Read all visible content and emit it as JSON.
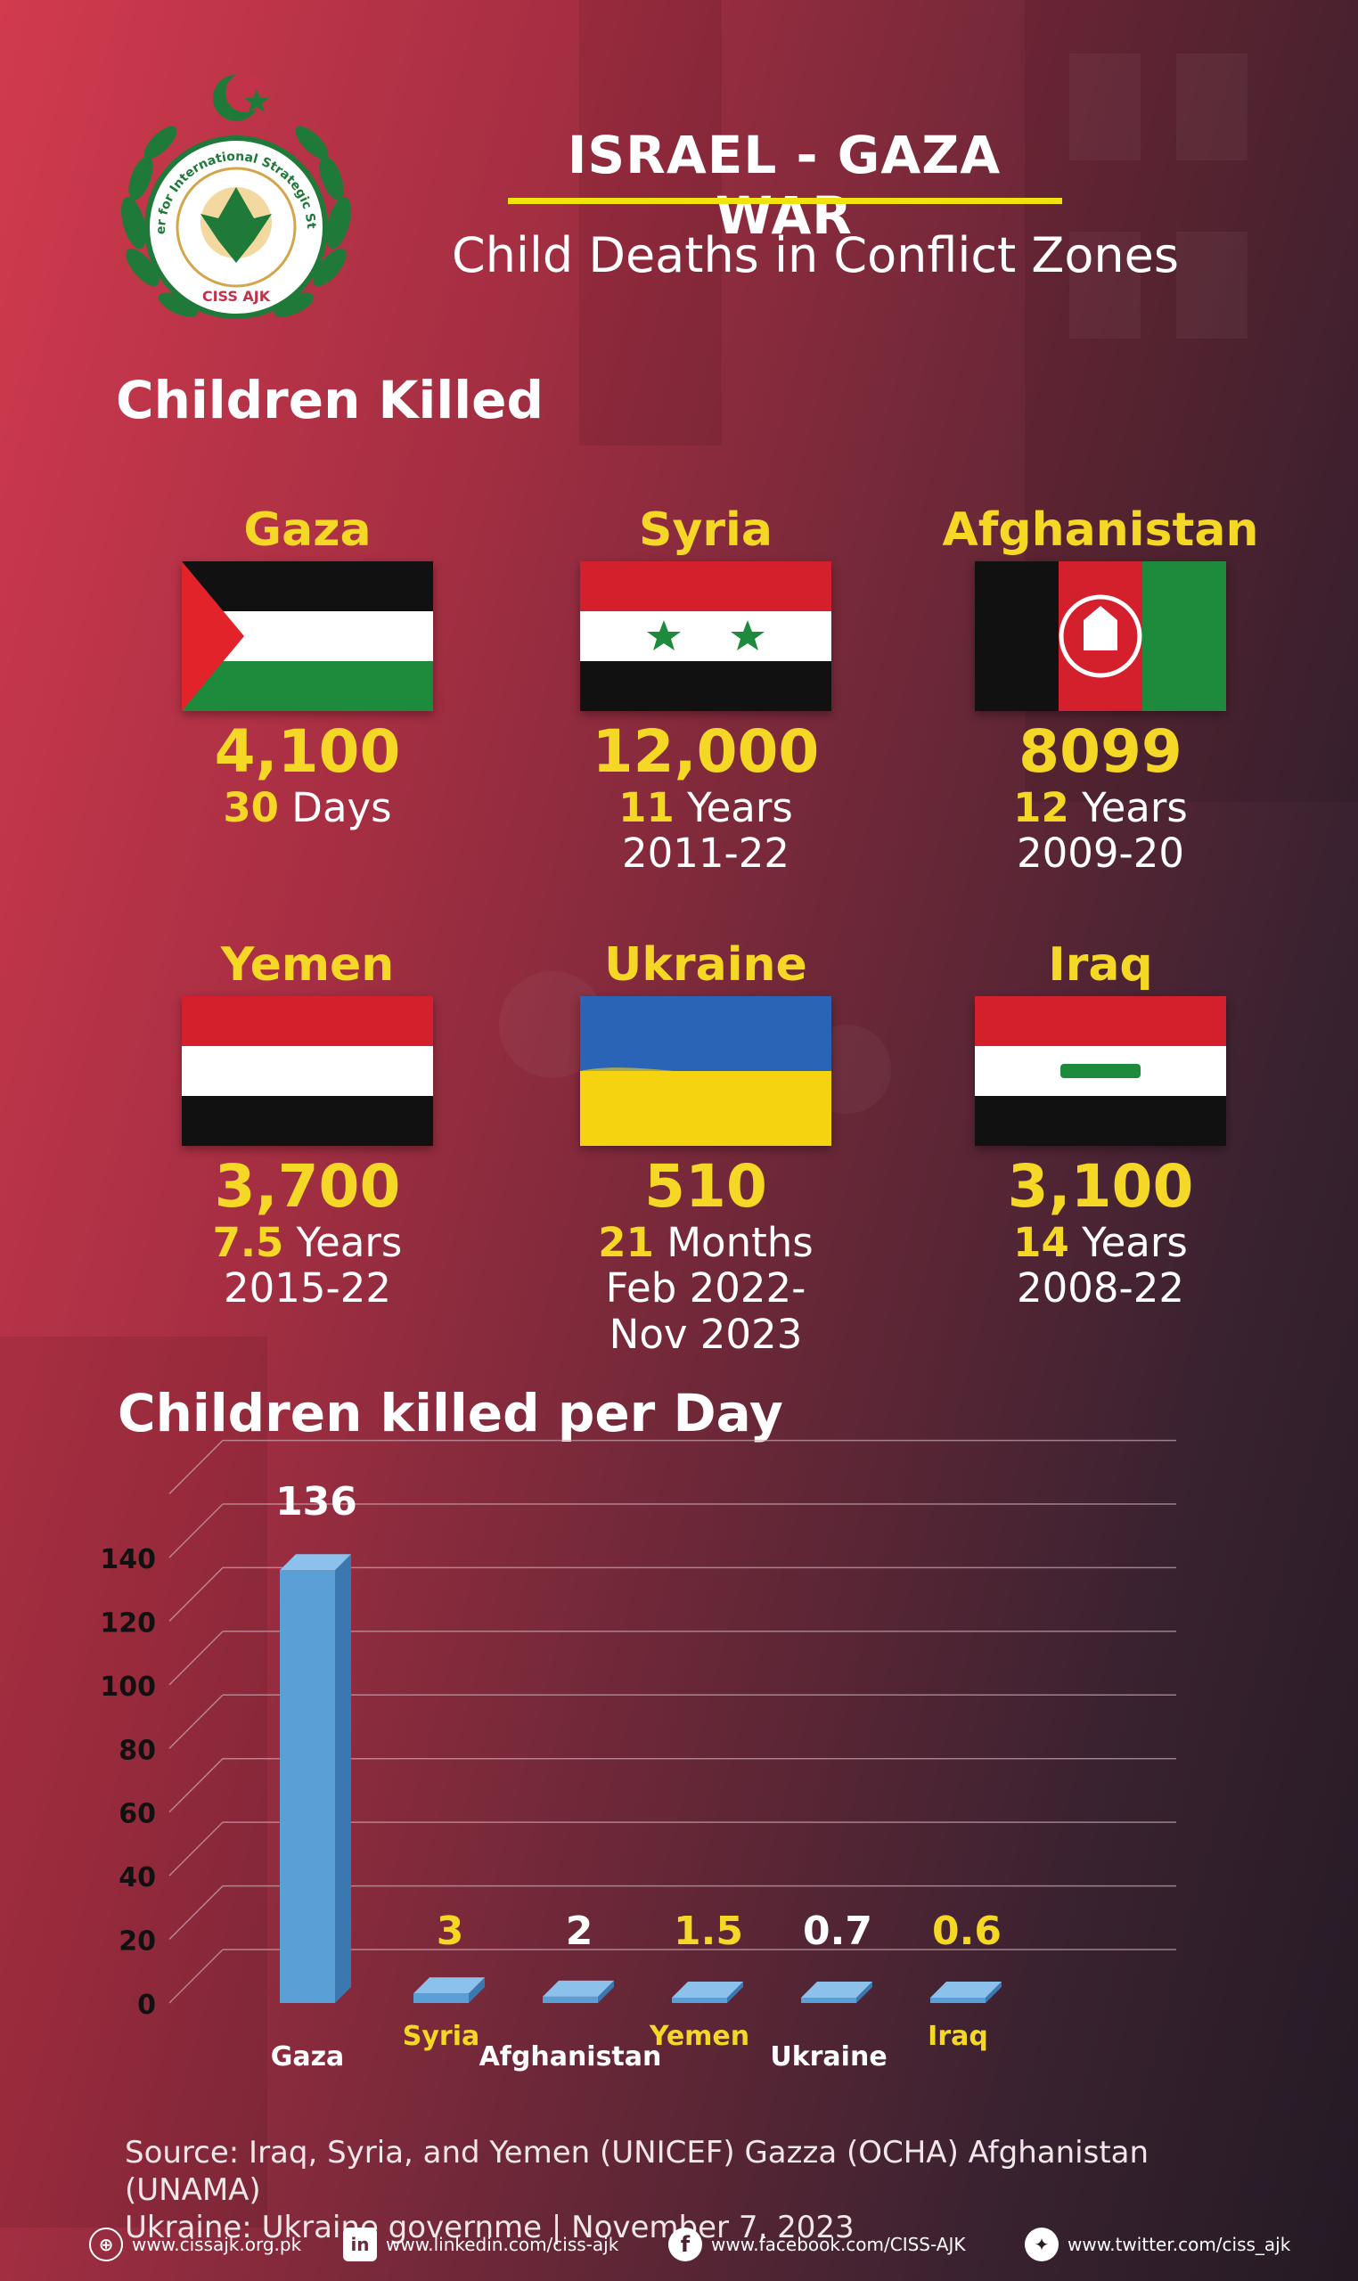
{
  "header": {
    "title": "ISRAEL - GAZA WAR",
    "subtitle": "Child Deaths in Conflict Zones",
    "logo_text": "Center for International Strategic Studies",
    "logo_abbrev": "CISS AJK"
  },
  "section_children_killed": "Children Killed",
  "countries": [
    {
      "name": "Gaza",
      "count": "4,100",
      "dur_num": "30",
      "dur_unit": " Days",
      "period": ""
    },
    {
      "name": "Syria",
      "count": "12,000",
      "dur_num": "11",
      "dur_unit": " Years",
      "period": "2011-22"
    },
    {
      "name": "Afghanistan",
      "count": "8099",
      "dur_num": "12",
      "dur_unit": " Years",
      "period": "2009-20"
    },
    {
      "name": "Yemen",
      "count": "3,700",
      "dur_num": "7.5",
      "dur_unit": " Years",
      "period": "2015-22"
    },
    {
      "name": "Ukraine",
      "count": "510",
      "dur_num": "21",
      "dur_unit": " Months",
      "period": "Feb 2022-\nNov 2023"
    },
    {
      "name": "Iraq",
      "count": "3,100",
      "dur_num": "14",
      "dur_unit": " Years",
      "period": "2008-22"
    }
  ],
  "section_per_day": "Children killed per Day",
  "chart_data": {
    "type": "bar",
    "title": "Children killed per Day",
    "categories": [
      "Gaza",
      "Syria",
      "Afghanistan",
      "Yemen",
      "Ukraine",
      "Iraq"
    ],
    "values": [
      136,
      3,
      2,
      1.5,
      0.7,
      0.6
    ],
    "value_labels": [
      "136",
      "3",
      "2",
      "1.5",
      "0.7",
      "0.6"
    ],
    "label_colors": [
      "#ffffff",
      "#f5d726",
      "#ffffff",
      "#f5d726",
      "#ffffff",
      "#f5d726"
    ],
    "yticks": [
      "0",
      "20",
      "40",
      "60",
      "80",
      "100",
      "120",
      "140"
    ],
    "ylim": [
      0,
      160
    ],
    "bar_color": "#5a9fd6",
    "grid": true
  },
  "source": {
    "line1": "Source: Iraq, Syria, and Yemen (UNICEF) Gazza (OCHA) Afghanistan (UNAMA)",
    "line2": "Ukraine: Ukraine governme | November 7, 2023"
  },
  "footer": {
    "web": "www.cissajk.org.pk",
    "linkedin": "www.linkedin.com/ciss-ajk",
    "facebook": "www.facebook.com/CISS-AJK",
    "twitter": "www.twitter.com/ciss_ajk"
  },
  "colors": {
    "yellow": "#f5d726",
    "title_underline": "#f2e20f"
  }
}
